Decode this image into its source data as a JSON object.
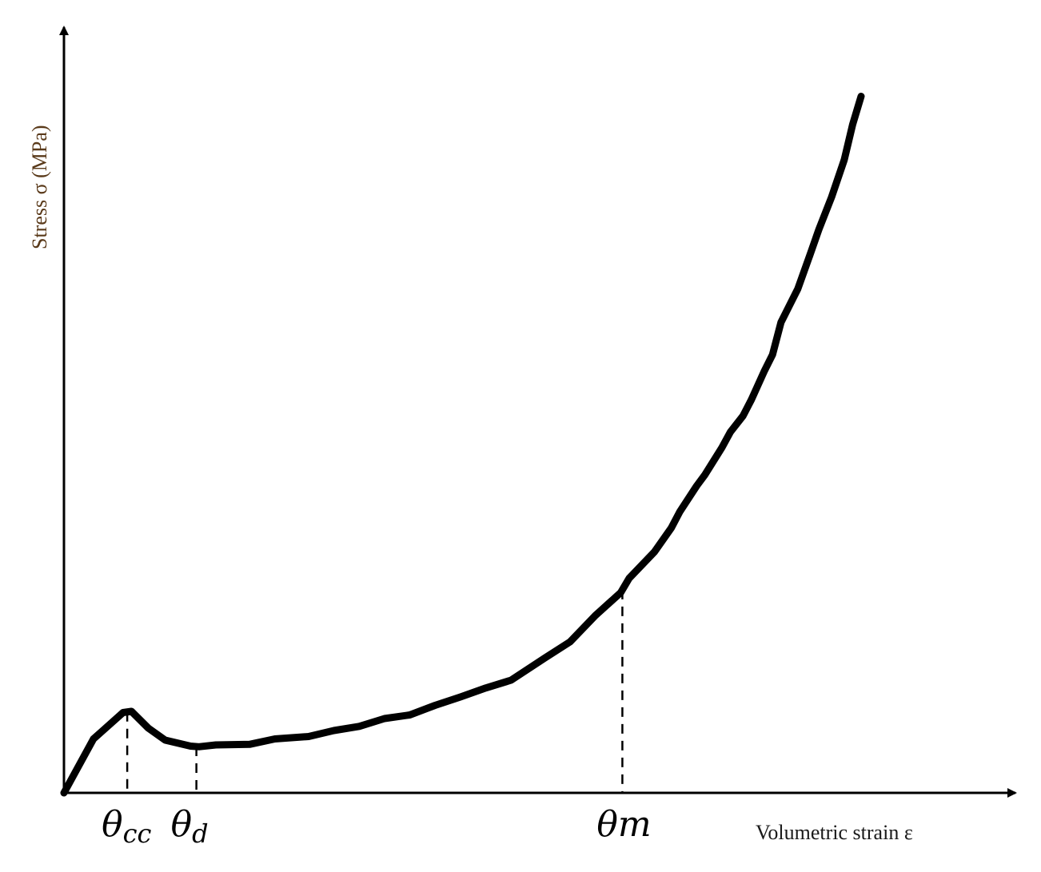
{
  "chart_data": {
    "type": "line",
    "title": "",
    "xlabel": "Volumetric strain ε",
    "ylabel": "Stress σ (MPa)",
    "grid": false,
    "legend": "none",
    "xlim": [
      0,
      100
    ],
    "ylim": [
      0,
      100
    ],
    "series": [
      {
        "values_x": [
          0,
          3.5,
          7,
          8,
          10,
          12,
          15,
          16,
          18,
          22,
          25,
          29,
          32,
          35,
          38,
          41,
          44,
          47,
          50,
          53,
          57,
          60,
          63,
          66,
          67,
          70,
          72,
          73,
          75,
          76,
          78,
          79,
          80.5,
          81.5,
          83,
          84,
          85,
          87,
          88.5,
          89.5,
          91,
          92.5,
          93.5,
          94.5
        ],
        "values_y": [
          0,
          9,
          13.4,
          13.6,
          10.8,
          8.8,
          7.8,
          7.7,
          8.0,
          8.1,
          9.0,
          9.4,
          10.4,
          11.1,
          12.4,
          13.0,
          14.6,
          16.0,
          17.5,
          18.8,
          22.5,
          25.2,
          29.6,
          33.4,
          35.8,
          40.2,
          44.2,
          46.9,
          51.2,
          53.1,
          57.6,
          60.2,
          62.9,
          65.6,
          70.3,
          73.1,
          78.5,
          84.1,
          90.0,
          94.0,
          99.4,
          105.6,
          111.5,
          116.2
        ],
        "color": "#000000"
      }
    ],
    "reference_lines": [
      {
        "label_main": "θ",
        "label_sub": "cc",
        "x": 7.5
      },
      {
        "label_main": "θ",
        "label_sub": "d",
        "x": 15.7
      },
      {
        "label_main": "θm",
        "label_sub": "",
        "x": 66.2
      }
    ]
  }
}
